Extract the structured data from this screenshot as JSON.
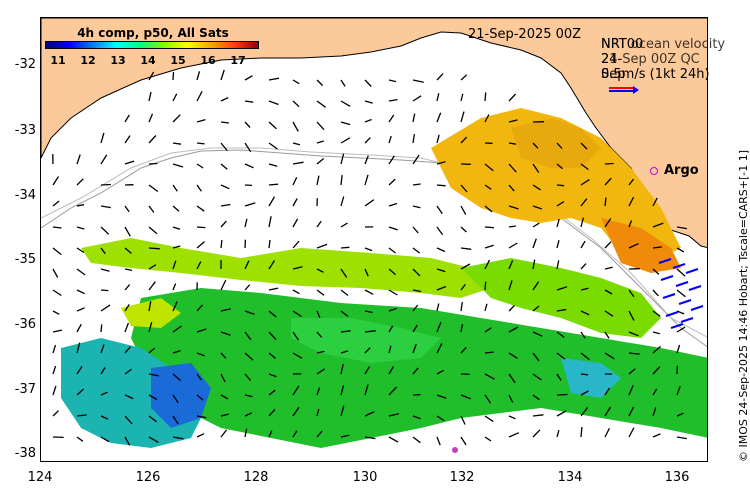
{
  "map": {
    "date": "21-Sep-2025 00Z",
    "colorbar": {
      "title": "4h comp, p50, All Sats",
      "ticks": [
        "11",
        "12",
        "13",
        "14",
        "15",
        "16",
        "17"
      ]
    },
    "legend": {
      "line1": "NRT ocean velocity",
      "line2": "21-Sep 00Z QC",
      "overlap1": "NRT00",
      "overlap2": "24-Sep",
      "scale": "0.5m/s (1kt 24h)"
    },
    "argo_label": "Argo",
    "y_axis": {
      "ticks": [
        "-32",
        "-33",
        "-34",
        "-35",
        "-36",
        "-37",
        "-38"
      ]
    },
    "x_axis": {
      "ticks": [
        "124",
        "126",
        "128",
        "130",
        "132",
        "134",
        "136"
      ]
    },
    "credit": "© IMOS 24-Sep-2025 14:46 Hobart; Tscale=CARS+[-1 1]",
    "colors": {
      "land": "#fbc99a",
      "arrow_black": "#000000",
      "arrow_blue": "#0000ff",
      "argo": "#d000d0"
    }
  }
}
